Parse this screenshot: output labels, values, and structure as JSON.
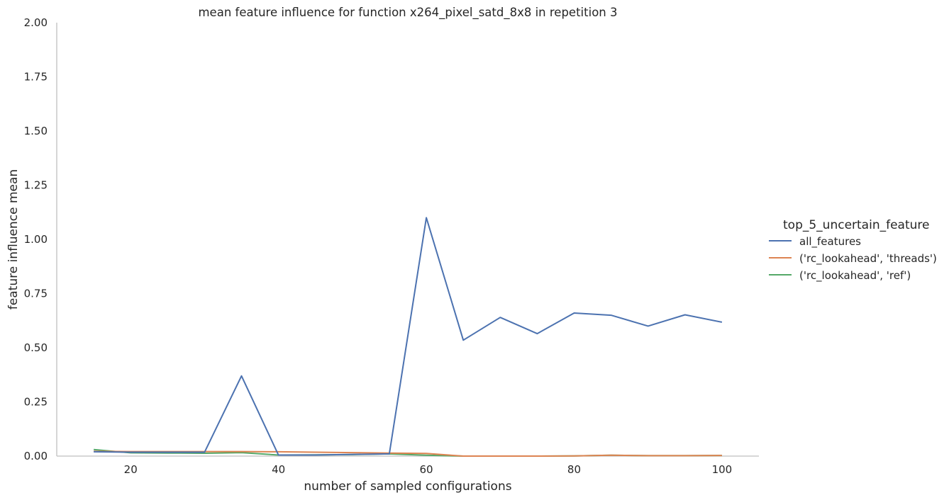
{
  "chart_data": {
    "type": "line",
    "title": "mean feature influence for function x264_pixel_satd_8x8 in repetition 3",
    "xlabel": "number of sampled configurations",
    "ylabel": "feature influence mean",
    "xlim": [
      10,
      105
    ],
    "ylim": [
      0,
      2.0
    ],
    "xticks": [
      20,
      40,
      60,
      80,
      100
    ],
    "yticks": [
      0.0,
      0.25,
      0.5,
      0.75,
      1.0,
      1.25,
      1.5,
      1.75,
      2.0
    ],
    "ytick_labels": [
      "0.00",
      "0.25",
      "0.50",
      "0.75",
      "1.00",
      "1.25",
      "1.50",
      "1.75",
      "2.00"
    ],
    "grid": false,
    "legend": {
      "title": "top_5_uncertain_feature",
      "placement": "right"
    },
    "x": [
      15,
      20,
      25,
      30,
      35,
      40,
      45,
      50,
      55,
      60,
      65,
      70,
      75,
      80,
      85,
      90,
      95,
      100
    ],
    "series": [
      {
        "name": "all_features",
        "color": "#4c72b0",
        "values": [
          0.02,
          0.018,
          0.018,
          0.018,
          0.37,
          0.005,
          0.005,
          0.008,
          0.01,
          1.1,
          0.535,
          0.64,
          0.565,
          0.66,
          0.65,
          0.6,
          0.652,
          0.618
        ]
      },
      {
        "name": "('rc_lookahead', 'threads')",
        "color": "#dd8452",
        "values": [
          0.022,
          0.021,
          0.021,
          0.021,
          0.021,
          0.02,
          0.018,
          0.016,
          0.014,
          0.012,
          0.0,
          0.0,
          0.0,
          0.001,
          0.004,
          0.002,
          0.002,
          0.003
        ]
      },
      {
        "name": "('rc_lookahead', 'ref')",
        "color": "#55a868",
        "values": [
          0.03,
          0.015,
          0.014,
          0.013,
          0.016,
          0.005,
          0.006,
          0.007,
          0.01,
          0.004,
          0.0,
          0.0,
          0.0,
          0.001,
          0.004,
          0.002,
          0.002,
          0.003
        ]
      }
    ]
  }
}
